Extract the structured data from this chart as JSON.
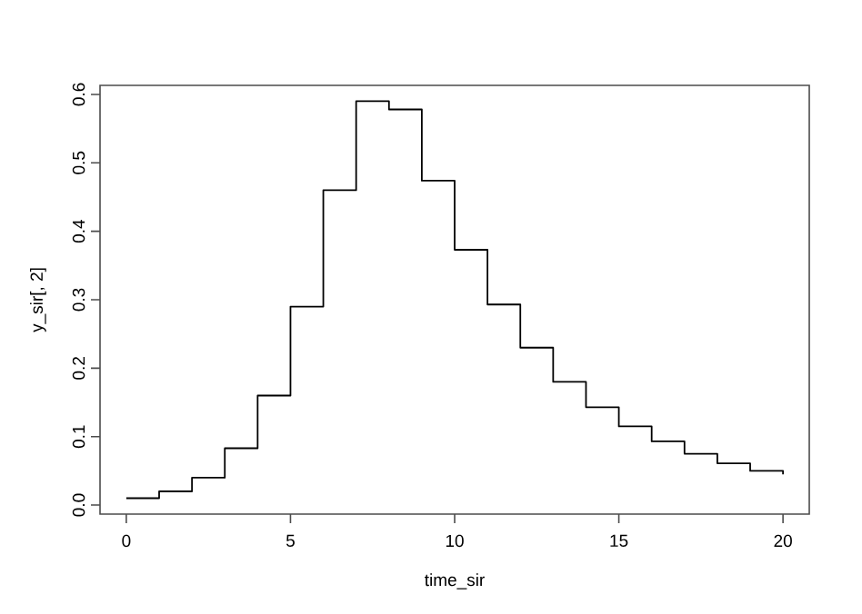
{
  "chart_data": {
    "type": "step",
    "xlabel": "time_sir",
    "ylabel": "y_sir[, 2]",
    "x": [
      0,
      1,
      2,
      3,
      4,
      5,
      6,
      7,
      8,
      9,
      10,
      11,
      12,
      13,
      14,
      15,
      16,
      17,
      18,
      19,
      20
    ],
    "values": [
      0.01,
      0.02,
      0.04,
      0.083,
      0.16,
      0.29,
      0.46,
      0.59,
      0.578,
      0.474,
      0.373,
      0.293,
      0.23,
      0.18,
      0.143,
      0.115,
      0.093,
      0.075,
      0.061,
      0.05,
      0.045
    ],
    "color": "#000000",
    "xlim": [
      -0.8,
      20.8
    ],
    "ylim": [
      -0.0132,
      0.6132
    ],
    "xticks": [
      0,
      5,
      10,
      15,
      20
    ],
    "yticks": [
      {
        "value": 0,
        "label": "0.0"
      },
      0.1,
      0.2,
      0.3,
      0.4,
      0.5,
      0.6
    ]
  }
}
